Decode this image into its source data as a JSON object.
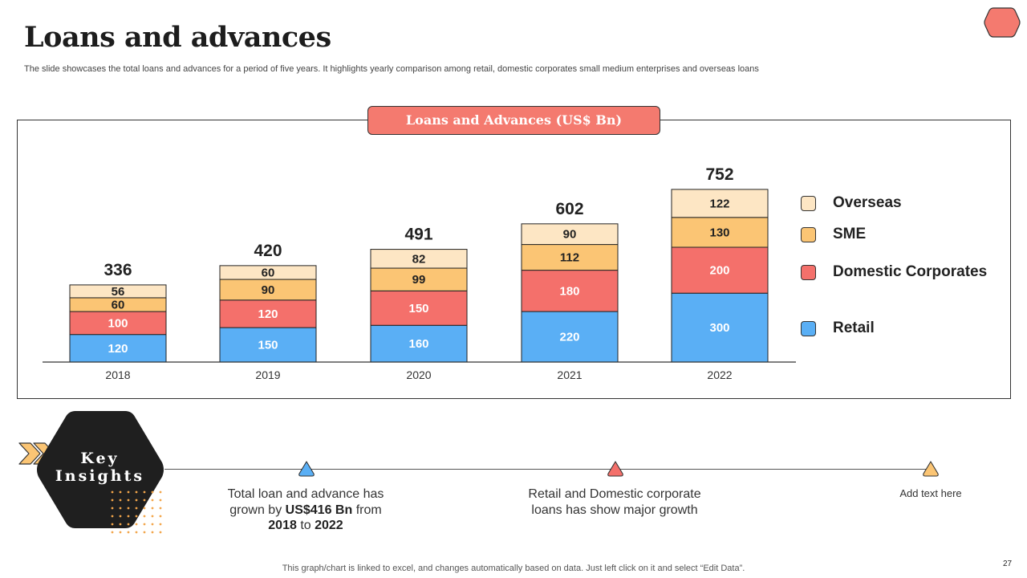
{
  "slide": {
    "title": "Loans and advances",
    "subtitle": "The slide showcases the total loans and advances for a period of five years. It highlights yearly comparison among retail, domestic corporates small medium enterprises and overseas loans",
    "footnote": "This graph/chart is linked to excel, and changes automatically based on data. Just left click on it and select “Edit Data”.",
    "page_number": "27"
  },
  "chart_header": "Loans and Advances (US$ Bn)",
  "chart_data": {
    "type": "bar",
    "stacked": true,
    "title": "Loans and Advances (US$ Bn)",
    "categories": [
      "2018",
      "2019",
      "2020",
      "2021",
      "2022"
    ],
    "series": [
      {
        "name": "Retail",
        "values": [
          120,
          150,
          160,
          220,
          300
        ]
      },
      {
        "name": "Domestic Corporates",
        "values": [
          100,
          120,
          150,
          180,
          200
        ]
      },
      {
        "name": "SME",
        "values": [
          60,
          90,
          99,
          112,
          130
        ]
      },
      {
        "name": "Overseas",
        "values": [
          56,
          60,
          82,
          90,
          122
        ]
      }
    ],
    "totals": [
      336,
      420,
      491,
      602,
      752
    ],
    "xlabel": "",
    "ylabel": "",
    "ylim": [
      0,
      800
    ],
    "grid": false,
    "legend_position": "right"
  },
  "legend": [
    {
      "label": "Overseas",
      "color": "#fde6c4"
    },
    {
      "label": "SME",
      "color": "#fbc574"
    },
    {
      "label": "Domestic Corporates",
      "color": "#f4706b"
    },
    {
      "label": "Retail",
      "color": "#5aaff5"
    }
  ],
  "colors": {
    "Retail": "#5aaff5",
    "Domestic Corporates": "#f4706b",
    "SME": "#fbc574",
    "Overseas": "#fde6c4",
    "accent": "#f47a6f",
    "dark": "#1f1f1f"
  },
  "key_insights": {
    "heading_line1": "Key",
    "heading_line2": "Insights",
    "insight1": {
      "pre": "Total loan and advance has grown by ",
      "amount": "US$416 Bn",
      "mid": " from ",
      "from_year": "2018",
      "to": " to ",
      "to_year": "2022"
    },
    "insight2": "Retail and Domestic corporate loans has show major growth",
    "insight3": "Add text here"
  },
  "icons": {
    "top_right": "hexagon-icon",
    "arrows": "double-chevron-arrow-icon",
    "markers": [
      "triangle-marker-icon",
      "triangle-marker-icon",
      "triangle-marker-icon"
    ]
  }
}
